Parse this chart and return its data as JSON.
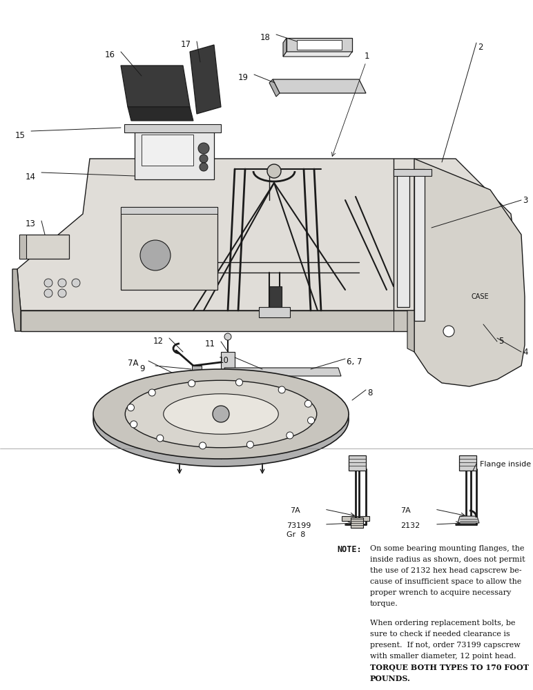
{
  "bg_color": "#ffffff",
  "line_color": "#1a1a1a",
  "text_color": "#111111",
  "fill_light": "#e8e8e8",
  "fill_mid": "#d0d0d0",
  "fill_dark": "#b0b0b0",
  "fill_black": "#2a2a2a",
  "note_label": "NOTE:",
  "note_line1": "On some bearing mounting flanges, the",
  "note_line2": "inside radius as shown, does not permit",
  "note_line3": "the use of 2132 hex head capscrew be-",
  "note_line4": "cause of insufficient space to allow the",
  "note_line5": "proper wrench to acquire necessary",
  "note_line6": "torque.",
  "note_line7": "When ordering replacement bolts, be",
  "note_line8": "sure to check if needed clearance is",
  "note_line9": "present.  If not, order 73199 capscrew",
  "note_line10": "with smaller diameter, 12 point head.",
  "note_line11": "TORQUE BOTH TYPES TO 170 FOOT",
  "note_line12": "POUNDS.",
  "flange_label": "Flange inside radius"
}
